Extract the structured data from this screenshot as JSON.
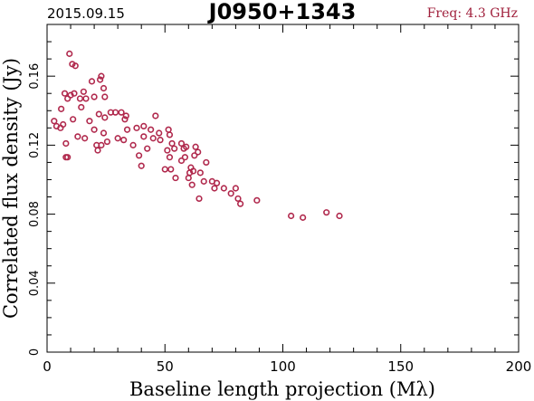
{
  "header": {
    "date": "2015.09.15",
    "source": "J0950+1343",
    "freq": "Freq: 4.3 GHz"
  },
  "colors": {
    "points": "#b0284c",
    "freq_text": "#a0203c",
    "axes": "#000000"
  },
  "chart_data": {
    "type": "scatter",
    "title": "J0950+1343",
    "xlabel": "Baseline length projection (Mλ)",
    "ylabel": "Correlated flux density (Jy)",
    "xlim": [
      0,
      200
    ],
    "ylim": [
      0,
      0.19
    ],
    "xticks": [
      0,
      50,
      100,
      150,
      200
    ],
    "xtick_labels": [
      "0",
      "50",
      "100",
      "150",
      "200"
    ],
    "yticks": [
      0,
      0.04,
      0.08,
      0.12,
      0.16
    ],
    "ytick_labels": [
      "0",
      "0.04",
      "0.08",
      "0.12",
      "0.16"
    ],
    "grid": false,
    "series": [
      {
        "marker": "open-circle",
        "points": [
          [
            3.0,
            0.134
          ],
          [
            4.0,
            0.131
          ],
          [
            5.7,
            0.13
          ],
          [
            6.0,
            0.141
          ],
          [
            6.8,
            0.132
          ],
          [
            7.5,
            0.15
          ],
          [
            8.0,
            0.121
          ],
          [
            8.0,
            0.113
          ],
          [
            8.7,
            0.113
          ],
          [
            8.7,
            0.147
          ],
          [
            9.5,
            0.173
          ],
          [
            10.0,
            0.149
          ],
          [
            10.7,
            0.167
          ],
          [
            11.0,
            0.135
          ],
          [
            11.5,
            0.15
          ],
          [
            12.0,
            0.166
          ],
          [
            13.0,
            0.125
          ],
          [
            14.0,
            0.147
          ],
          [
            14.5,
            0.142
          ],
          [
            15.5,
            0.151
          ],
          [
            16.0,
            0.124
          ],
          [
            16.5,
            0.147
          ],
          [
            18.0,
            0.134
          ],
          [
            19.0,
            0.157
          ],
          [
            20.0,
            0.129
          ],
          [
            20.0,
            0.148
          ],
          [
            21.0,
            0.12
          ],
          [
            21.5,
            0.117
          ],
          [
            22.0,
            0.138
          ],
          [
            22.5,
            0.158
          ],
          [
            23.0,
            0.12
          ],
          [
            23.0,
            0.16
          ],
          [
            24.0,
            0.127
          ],
          [
            24.0,
            0.153
          ],
          [
            24.5,
            0.136
          ],
          [
            24.5,
            0.148
          ],
          [
            25.5,
            0.122
          ],
          [
            27.0,
            0.139
          ],
          [
            29.0,
            0.139
          ],
          [
            30.0,
            0.124
          ],
          [
            31.5,
            0.139
          ],
          [
            32.5,
            0.123
          ],
          [
            33.0,
            0.135
          ],
          [
            33.5,
            0.137
          ],
          [
            34.0,
            0.129
          ],
          [
            36.5,
            0.12
          ],
          [
            38.0,
            0.13
          ],
          [
            39.0,
            0.114
          ],
          [
            40.0,
            0.108
          ],
          [
            41.0,
            0.131
          ],
          [
            41.0,
            0.125
          ],
          [
            42.5,
            0.118
          ],
          [
            44.0,
            0.129
          ],
          [
            45.0,
            0.124
          ],
          [
            46.0,
            0.137
          ],
          [
            47.5,
            0.127
          ],
          [
            48.0,
            0.123
          ],
          [
            50.0,
            0.106
          ],
          [
            51.0,
            0.117
          ],
          [
            51.5,
            0.129
          ],
          [
            52.0,
            0.126
          ],
          [
            52.0,
            0.113
          ],
          [
            52.5,
            0.106
          ],
          [
            53.0,
            0.121
          ],
          [
            54.0,
            0.118
          ],
          [
            54.5,
            0.101
          ],
          [
            57.0,
            0.121
          ],
          [
            57.0,
            0.111
          ],
          [
            58.0,
            0.118
          ],
          [
            58.5,
            0.113
          ],
          [
            59.0,
            0.119
          ],
          [
            60.0,
            0.101
          ],
          [
            60.5,
            0.104
          ],
          [
            61.0,
            0.107
          ],
          [
            61.5,
            0.097
          ],
          [
            62.0,
            0.105
          ],
          [
            62.5,
            0.114
          ],
          [
            63.0,
            0.119
          ],
          [
            64.0,
            0.116
          ],
          [
            64.5,
            0.089
          ],
          [
            65.0,
            0.104
          ],
          [
            66.5,
            0.099
          ],
          [
            67.5,
            0.11
          ],
          [
            70.0,
            0.099
          ],
          [
            71.0,
            0.095
          ],
          [
            72.0,
            0.098
          ],
          [
            75.0,
            0.095
          ],
          [
            78.0,
            0.092
          ],
          [
            80.0,
            0.095
          ],
          [
            81.0,
            0.089
          ],
          [
            82.0,
            0.086
          ],
          [
            89.0,
            0.088
          ],
          [
            103.5,
            0.079
          ],
          [
            108.5,
            0.078
          ],
          [
            118.5,
            0.081
          ],
          [
            124.0,
            0.079
          ]
        ]
      }
    ]
  }
}
